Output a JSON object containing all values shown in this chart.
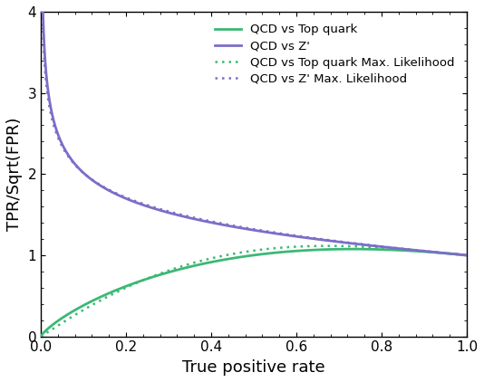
{
  "title": "",
  "xlabel": "True positive rate",
  "ylabel": "TPR/Sqrt(FPR)",
  "xlim": [
    0.0,
    1.0
  ],
  "ylim": [
    0.0,
    4.0
  ],
  "line_color_top": "#3cb874",
  "line_color_zprime": "#7b6ec8",
  "line_color_top_ml": "#3cb874",
  "line_color_zprime_ml": "#7b6ec8",
  "legend_labels": [
    "QCD vs Top quark",
    "QCD vs Z'",
    "QCD vs Top quark Max. Likelihood",
    "QCD vs Z' Max. Likelihood"
  ],
  "xticks": [
    0.0,
    0.2,
    0.4,
    0.6,
    0.8,
    1.0
  ],
  "yticks": [
    0,
    1,
    2,
    3,
    4
  ]
}
